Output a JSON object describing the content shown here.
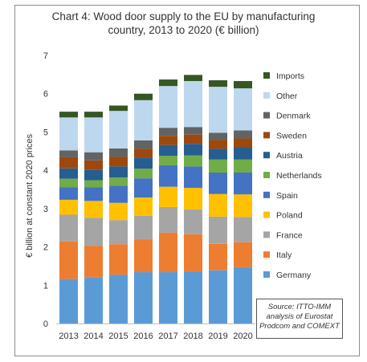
{
  "chart_data": {
    "type": "bar",
    "stacked": true,
    "title_lines": [
      "Chart 4: Wood door supply to the EU by manufacturing",
      "country, 2013 to 2020 (€ billion)"
    ],
    "ylabel": "€ billion at constant 2020 prices",
    "xlabel": "",
    "ylim": [
      0,
      7
    ],
    "yticks": [
      0,
      1,
      2,
      3,
      4,
      5,
      6,
      7
    ],
    "grid": false,
    "legend_position": "right",
    "categories": [
      "2013",
      "2014",
      "2015",
      "2016",
      "2017",
      "2018",
      "2019",
      "2020"
    ],
    "series": [
      {
        "name": "Germany",
        "color": "#5b9bd5",
        "values": [
          1.16,
          1.21,
          1.27,
          1.34,
          1.34,
          1.36,
          1.39,
          1.47
        ]
      },
      {
        "name": "Italy",
        "color": "#ed7d31",
        "values": [
          0.98,
          0.82,
          0.8,
          0.85,
          1.03,
          0.97,
          0.69,
          0.65
        ]
      },
      {
        "name": "France",
        "color": "#a5a5a5",
        "values": [
          0.7,
          0.73,
          0.63,
          0.62,
          0.67,
          0.65,
          0.71,
          0.66
        ]
      },
      {
        "name": "Poland",
        "color": "#ffc000",
        "values": [
          0.39,
          0.44,
          0.45,
          0.48,
          0.53,
          0.56,
          0.59,
          0.59
        ]
      },
      {
        "name": "Spain",
        "color": "#4472c4",
        "values": [
          0.33,
          0.36,
          0.45,
          0.5,
          0.56,
          0.56,
          0.56,
          0.57
        ]
      },
      {
        "name": "Netherlands",
        "color": "#70ad47",
        "values": [
          0.22,
          0.18,
          0.21,
          0.25,
          0.25,
          0.29,
          0.34,
          0.34
        ]
      },
      {
        "name": "Austria",
        "color": "#255e91",
        "values": [
          0.27,
          0.27,
          0.29,
          0.29,
          0.28,
          0.3,
          0.28,
          0.32
        ]
      },
      {
        "name": "Sweden",
        "color": "#9e480e",
        "values": [
          0.29,
          0.25,
          0.25,
          0.23,
          0.24,
          0.24,
          0.23,
          0.23
        ]
      },
      {
        "name": "Denmark",
        "color": "#636363",
        "values": [
          0.18,
          0.21,
          0.22,
          0.22,
          0.21,
          0.2,
          0.19,
          0.21
        ]
      },
      {
        "name": "Other",
        "color": "#bdd7ee",
        "values": [
          0.86,
          0.91,
          0.98,
          1.05,
          1.09,
          1.2,
          1.2,
          1.1
        ]
      },
      {
        "name": "Imports",
        "color": "#375623",
        "values": [
          0.15,
          0.15,
          0.14,
          0.17,
          0.17,
          0.16,
          0.17,
          0.19
        ]
      }
    ],
    "source_lines": [
      "Source: ITTO-IMM",
      "analysis of Eurostat",
      "Prodcom and COMEXT"
    ]
  }
}
